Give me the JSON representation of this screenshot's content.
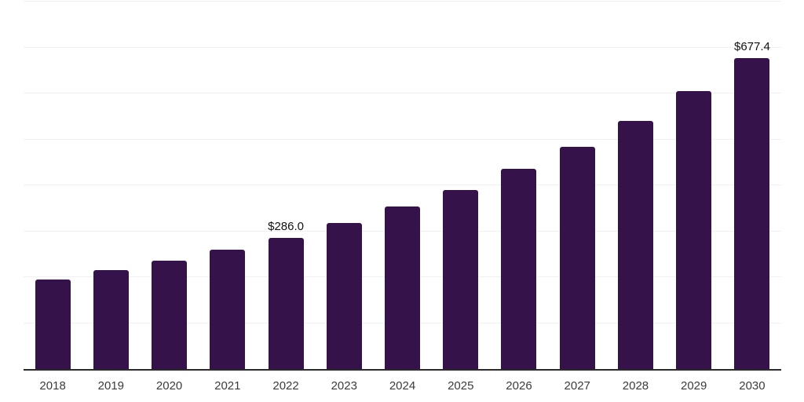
{
  "chart_data": {
    "type": "bar",
    "title": "",
    "xlabel": "",
    "ylabel": "",
    "categories": [
      "2018",
      "2019",
      "2020",
      "2021",
      "2022",
      "2023",
      "2024",
      "2025",
      "2026",
      "2027",
      "2028",
      "2029",
      "2030"
    ],
    "values": [
      195,
      215,
      236,
      260,
      286.0,
      318,
      354,
      389,
      436,
      483,
      541,
      606,
      677.4
    ],
    "bar_labels": [
      "",
      "",
      "",
      "",
      "$286.0",
      "",
      "",
      "",
      "",
      "",
      "",
      "",
      "$677.4"
    ],
    "ylim": [
      0,
      800
    ],
    "gridline_interval": 100,
    "grid": "horizontal",
    "legend": "none"
  },
  "colors": {
    "bar": "#36124a",
    "axis_line": "#2b2b2b",
    "gridline": "#f1f1f3",
    "value_label": "#111111",
    "tick_label": "#3b3b3b",
    "background": "#ffffff"
  }
}
